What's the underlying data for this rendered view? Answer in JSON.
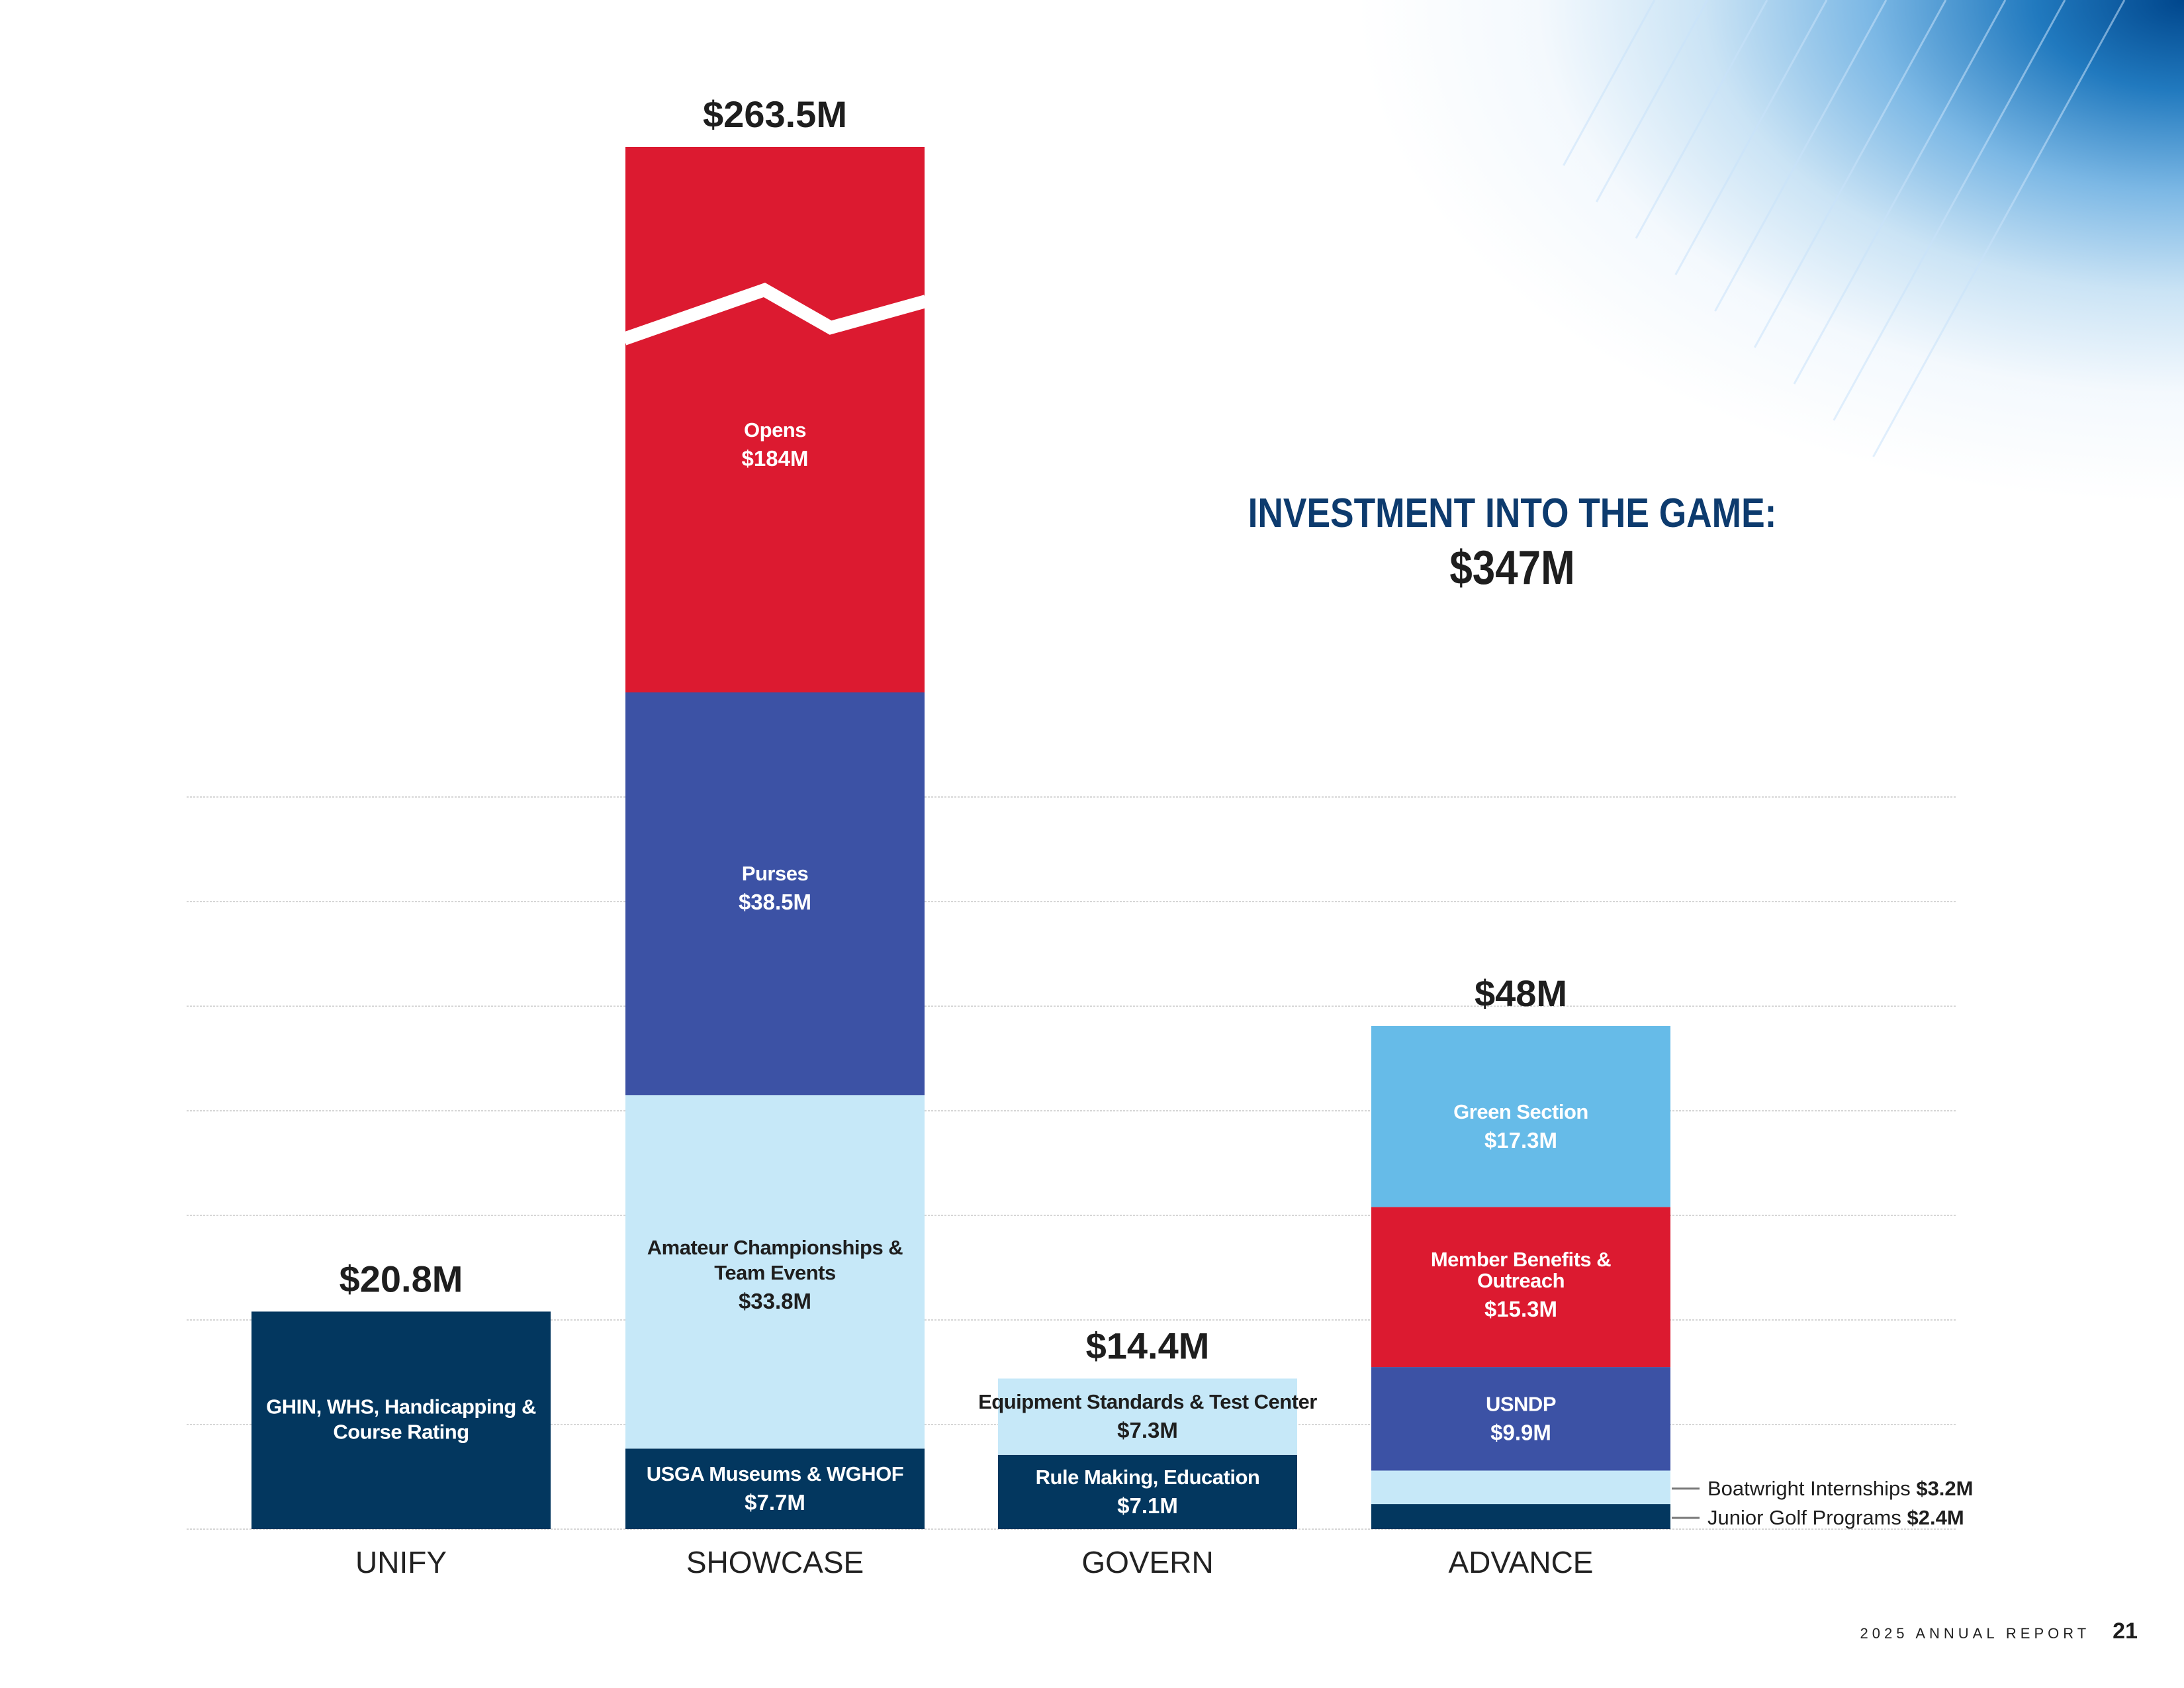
{
  "headline": {
    "title": "INVESTMENT INTO THE GAME:",
    "total": "$347M"
  },
  "footer": {
    "report": "2025 ANNUAL REPORT",
    "page": "21"
  },
  "colors": {
    "navy": "#03375f",
    "red": "#dc1a30",
    "royal_blue": "#3c52a5",
    "pale_blue": "#c6e8f8",
    "sky_blue": "#66bbe8",
    "headline_navy": "#0d3b6e",
    "text_dark": "#1e1e1e"
  },
  "chart_data": {
    "type": "bar",
    "stacked": true,
    "title": "Investment into the Game: $347M",
    "xlabel": "",
    "ylabel": "",
    "ylim": [
      0,
      70
    ],
    "grid": true,
    "units": "USD millions",
    "categories": [
      "UNIFY",
      "SHOWCASE",
      "GOVERN",
      "ADVANCE"
    ],
    "totals": [
      {
        "category": "UNIFY",
        "value": 20.8,
        "label": "$20.8M"
      },
      {
        "category": "SHOWCASE",
        "value": 263.5,
        "label": "$263.5M",
        "axis_break": true
      },
      {
        "category": "GOVERN",
        "value": 14.4,
        "label": "$14.4M"
      },
      {
        "category": "ADVANCE",
        "value": 48,
        "label": "$48M"
      }
    ],
    "stacks": [
      {
        "category": "UNIFY",
        "segments": [
          {
            "name": "GHIN, WHS, Handicapping & Course Rating",
            "value": 20.8,
            "value_label": "",
            "color": "#03375f",
            "text_color": "#ffffff",
            "label_lines": [
              "GHIN, WHS, Handicapping &",
              "Course Rating"
            ]
          }
        ]
      },
      {
        "category": "SHOWCASE",
        "segments": [
          {
            "name": "USGA Museums & WGHOF",
            "value": 7.7,
            "value_label": "$7.7M",
            "color": "#03375f",
            "text_color": "#ffffff",
            "label_lines": [
              "USGA Museums & WGHOF"
            ]
          },
          {
            "name": "Amateur Championships & Team Events",
            "value": 33.8,
            "value_label": "$33.8M",
            "color": "#c6e8f8",
            "text_color": "#1e1e1e",
            "label_lines": [
              "Amateur Championships &",
              "Team Events"
            ]
          },
          {
            "name": "Purses",
            "value": 38.5,
            "value_label": "$38.5M",
            "color": "#3c52a5",
            "text_color": "#ffffff",
            "label_lines": [
              "Purses"
            ]
          },
          {
            "name": "Opens",
            "value": 184,
            "value_label": "$184M",
            "color": "#dc1a30",
            "text_color": "#ffffff",
            "label_lines": [
              "Opens"
            ],
            "truncated": true
          }
        ]
      },
      {
        "category": "GOVERN",
        "segments": [
          {
            "name": "Rule Making, Education",
            "value": 7.1,
            "value_label": "$7.1M",
            "color": "#03375f",
            "text_color": "#ffffff",
            "label_lines": [
              "Rule Making, Education"
            ]
          },
          {
            "name": "Equipment Standards & Test Center",
            "value": 7.3,
            "value_label": "$7.3M",
            "color": "#c6e8f8",
            "text_color": "#1e1e1e",
            "label_lines": [
              "Equipment Standards & Test Center"
            ]
          }
        ]
      },
      {
        "category": "ADVANCE",
        "segments": [
          {
            "name": "Junior Golf Programs",
            "value": 2.4,
            "value_label": "$2.4M",
            "color": "#03375f",
            "callout": true
          },
          {
            "name": "Boatwright Internships",
            "value": 3.2,
            "value_label": "$3.2M",
            "color": "#c6e8f8",
            "callout": true
          },
          {
            "name": "USNDP",
            "value": 9.9,
            "value_label": "$9.9M",
            "color": "#3c52a5",
            "text_color": "#ffffff",
            "label_lines": [
              "USNDP"
            ]
          },
          {
            "name": "Member Benefits & Outreach",
            "value": 15.3,
            "value_label": "$15.3M",
            "color": "#dc1a30",
            "text_color": "#ffffff",
            "label_lines": [
              "Member Benefits &",
              "Outreach"
            ]
          },
          {
            "name": "Green Section",
            "value": 17.3,
            "value_label": "$17.3M",
            "color": "#66bbe8",
            "text_color": "#ffffff",
            "label_lines": [
              "Green Section"
            ]
          }
        ]
      }
    ]
  }
}
